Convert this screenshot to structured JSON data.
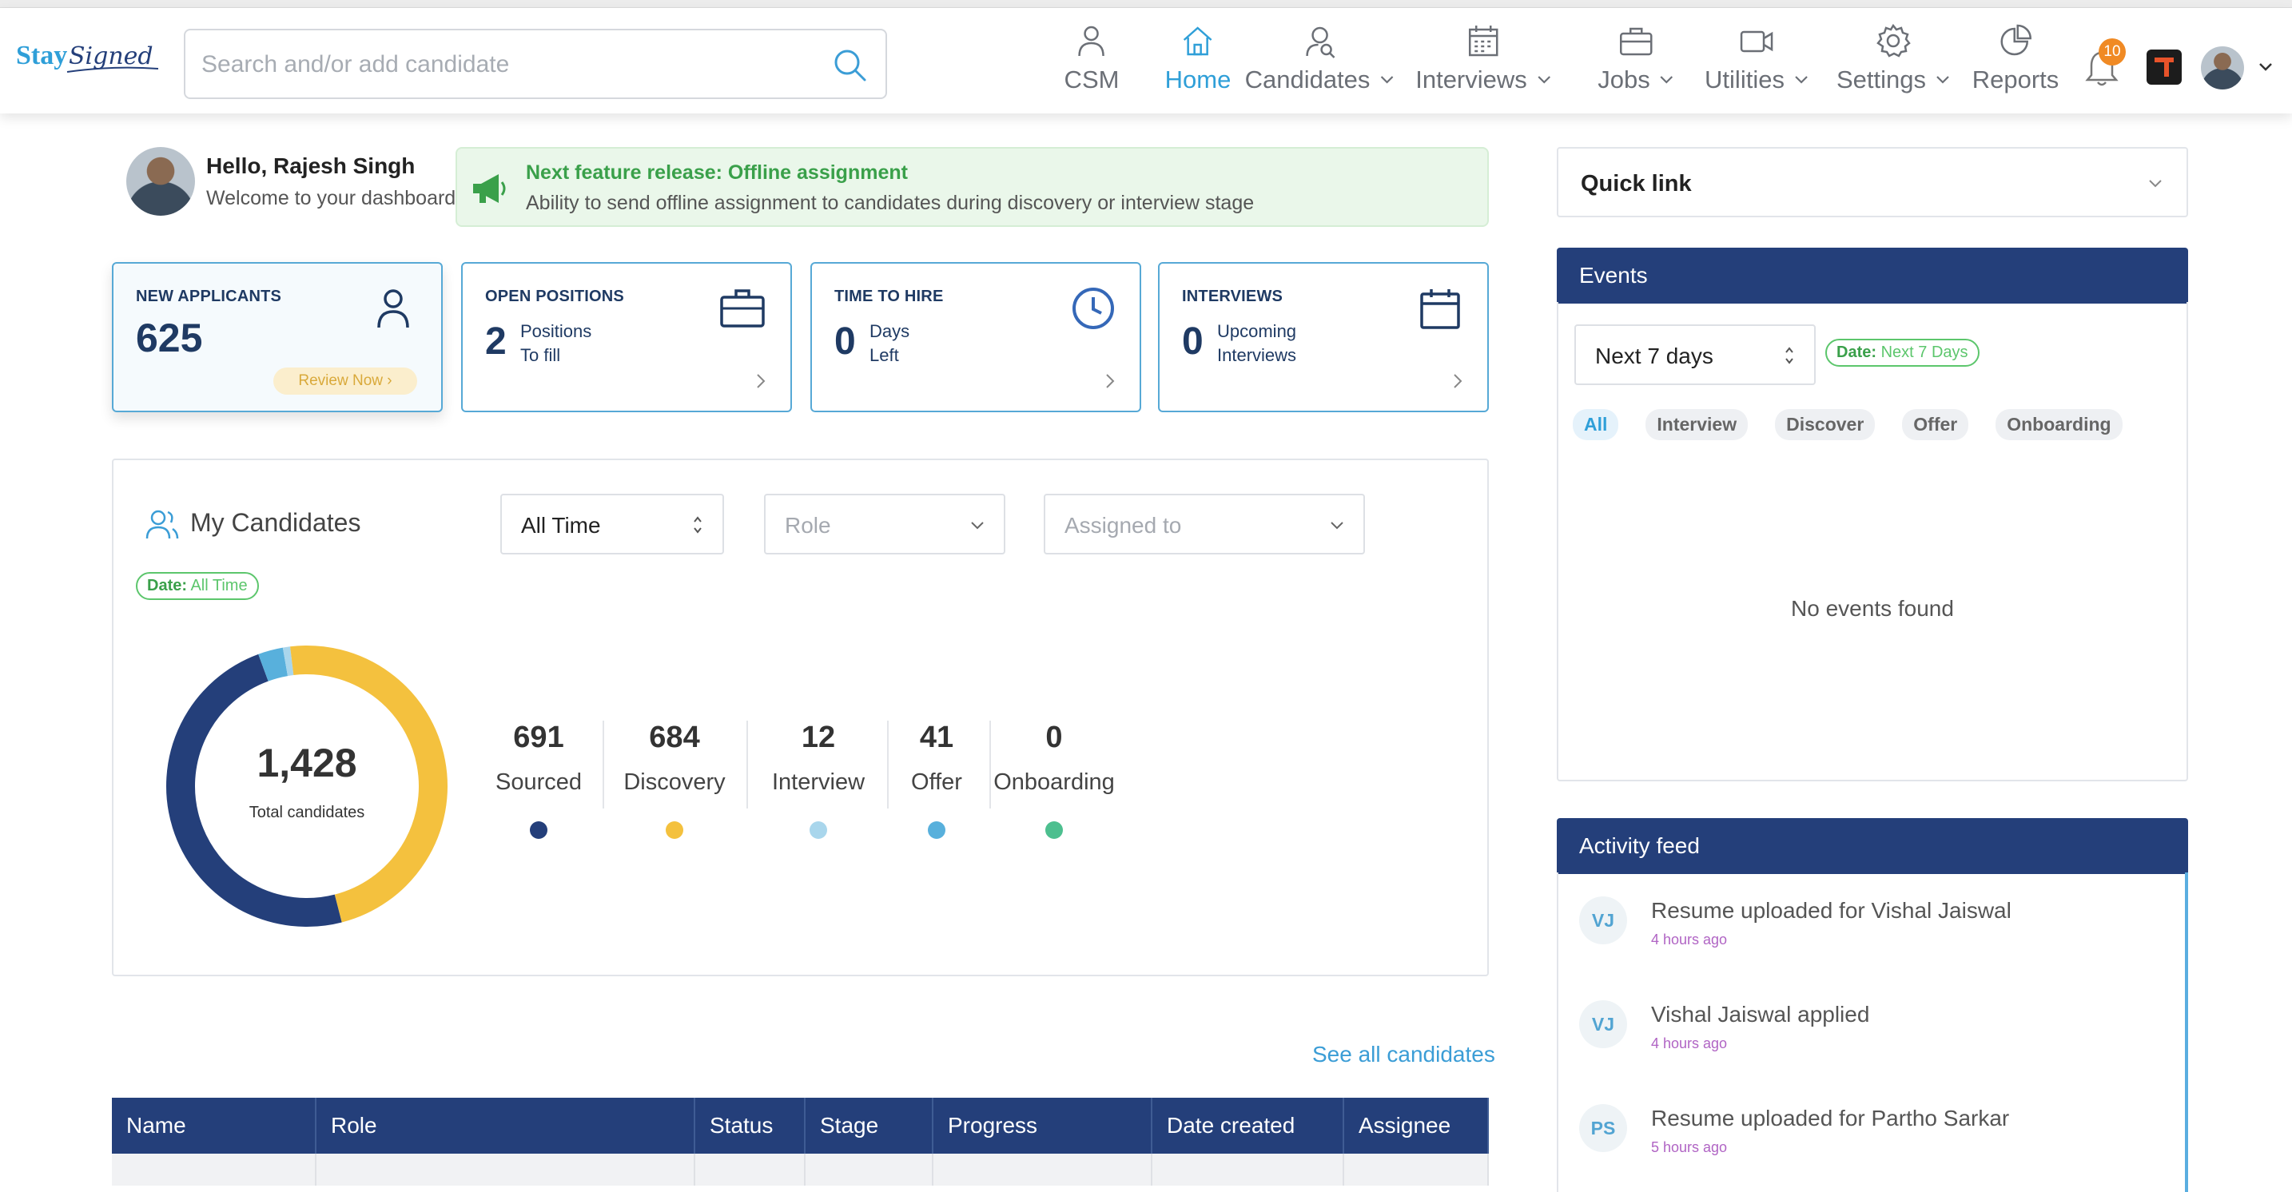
{
  "app": {
    "logo_text": "StaySigned",
    "search_placeholder": "Search and/or add candidate"
  },
  "nav": [
    {
      "label": "CSM",
      "icon": "user-icon",
      "dropdown": false,
      "active": false
    },
    {
      "label": "Home",
      "icon": "home-icon",
      "dropdown": false,
      "active": true
    },
    {
      "label": "Candidates",
      "icon": "candidates-icon",
      "dropdown": true,
      "active": false
    },
    {
      "label": "Interviews",
      "icon": "calendar-icon",
      "dropdown": true,
      "active": false
    },
    {
      "label": "Jobs",
      "icon": "briefcase-icon",
      "dropdown": true,
      "active": false
    },
    {
      "label": "Utilities",
      "icon": "video-icon",
      "dropdown": true,
      "active": false
    },
    {
      "label": "Settings",
      "icon": "gear-icon",
      "dropdown": true,
      "active": false
    },
    {
      "label": "Reports",
      "icon": "pie-chart-icon",
      "dropdown": false,
      "active": false
    }
  ],
  "notifications": {
    "count": "10"
  },
  "greeting": {
    "name": "Hello, Rajesh Singh",
    "sub": "Welcome to your dashboard"
  },
  "release": {
    "title": "Next feature release: Offline assignment",
    "text": "Ability to send offline assignment to candidates during discovery or interview stage"
  },
  "stats": {
    "new_applicants": {
      "title": "NEW APPLICANTS",
      "value": "625",
      "action": "Review Now"
    },
    "open_positions": {
      "title": "OPEN POSITIONS",
      "value": "2",
      "line1": "Positions",
      "line2": "To fill"
    },
    "time_to_hire": {
      "title": "TIME TO HIRE",
      "value": "0",
      "line1": "Days",
      "line2": "Left"
    },
    "interviews": {
      "title": "INTERVIEWS",
      "value": "0",
      "line1": "Upcoming",
      "line2": "Interviews"
    }
  },
  "my_candidates": {
    "title": "My Candidates",
    "time_filter": "All Time",
    "role_placeholder": "Role",
    "assigned_placeholder": "Assigned to",
    "date_pill_label": "Date:",
    "date_pill_value": "All Time",
    "total": "1,428",
    "total_label": "Total candidates",
    "stages": [
      {
        "count": "691",
        "label": "Sourced",
        "value": 691,
        "color": "#243f7a"
      },
      {
        "count": "684",
        "label": "Discovery",
        "value": 684,
        "color": "#f4c13e"
      },
      {
        "count": "12",
        "label": "Interview",
        "value": 12,
        "color": "#a9d6ec"
      },
      {
        "count": "41",
        "label": "Offer",
        "value": 41,
        "color": "#58b0dc"
      },
      {
        "count": "0",
        "label": "Onboarding",
        "value": 0,
        "color": "#4dbf8f"
      }
    ],
    "see_all": "See all candidates"
  },
  "table": {
    "columns": [
      "Name",
      "Role",
      "Status",
      "Stage",
      "Progress",
      "Date created",
      "Assignee"
    ]
  },
  "quick_link": {
    "title": "Quick link"
  },
  "events": {
    "title": "Events",
    "range": "Next 7 days",
    "date_pill_label": "Date:",
    "date_pill_value": "Next 7 Days",
    "tabs": [
      "All",
      "Interview",
      "Discover",
      "Offer",
      "Onboarding"
    ],
    "active_tab": "All",
    "empty": "No events found"
  },
  "activity": {
    "title": "Activity feed",
    "items": [
      {
        "initials": "VJ",
        "text": "Resume uploaded for Vishal Jaiswal",
        "time": "4 hours ago"
      },
      {
        "initials": "VJ",
        "text": "Vishal Jaiswal applied",
        "time": "4 hours ago"
      },
      {
        "initials": "PS",
        "text": "Resume uploaded for Partho Sarkar",
        "time": "5 hours ago"
      }
    ]
  }
}
